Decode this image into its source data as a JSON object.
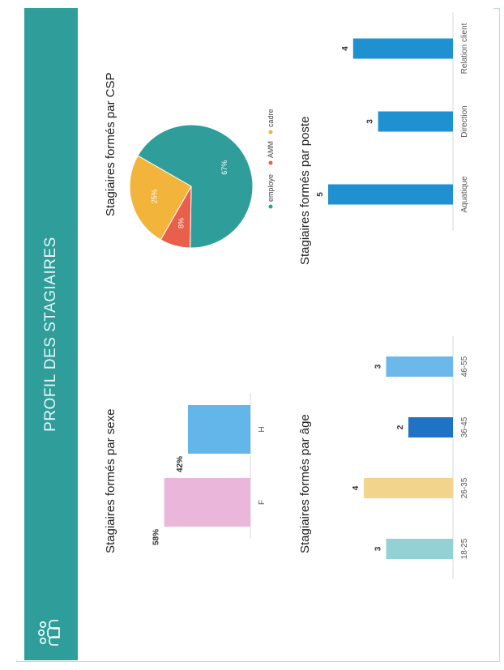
{
  "header": {
    "title": "PROFIL DES STAGIAIRES",
    "icon": "people-icon",
    "color": "#2f9e9b"
  },
  "chart_data": [
    {
      "type": "bar",
      "title": "Stagiaires formés par sexe",
      "categories": [
        "F",
        "H"
      ],
      "values": [
        58,
        42
      ],
      "data_labels": [
        "58%",
        "42%"
      ],
      "colors": [
        "#eab6da",
        "#62b6ea"
      ]
    },
    {
      "type": "bar",
      "title": "Stagiaires formés par âge",
      "categories": [
        "18-25",
        "26-35",
        "36-45",
        "46-55"
      ],
      "values": [
        3,
        4,
        2,
        3
      ],
      "colors": [
        "#93d2d4",
        "#f3d48c",
        "#1f73c4",
        "#6db8ea"
      ]
    },
    {
      "type": "pie",
      "title": "Stagiaires formés par CSP",
      "labels": [
        "employe",
        "AMM",
        "cadre"
      ],
      "values": [
        67,
        8,
        25
      ],
      "data_labels": [
        "67%",
        "8%",
        "25%"
      ],
      "colors": [
        "#2f9e9b",
        "#e8604c",
        "#f2b43b"
      ],
      "legend": "bottom"
    },
    {
      "type": "bar",
      "title": "Stagiaires formés par poste",
      "categories": [
        "Aquatique",
        "Direction",
        "Relation client"
      ],
      "values": [
        5,
        3,
        4
      ],
      "colors": [
        "#1f90d0",
        "#1f90d0",
        "#1f90d0"
      ]
    }
  ]
}
